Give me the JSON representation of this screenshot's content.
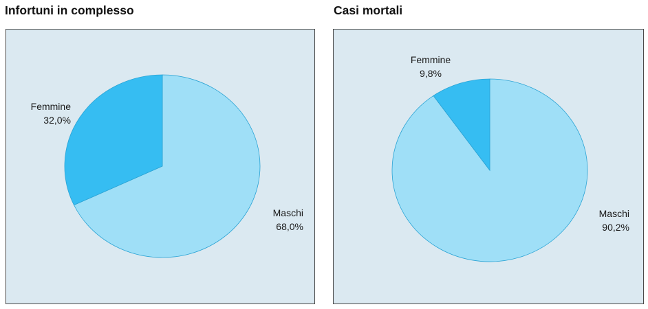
{
  "colors": {
    "panel_bg": "#dbe9f1",
    "maschi": "#9fdff7",
    "femmine": "#36bdf2",
    "edge": "#2aa3d4"
  },
  "chart_data": [
    {
      "type": "pie",
      "title": "Infortuni in complesso",
      "slices": [
        {
          "label": "Maschi",
          "value": 68.0,
          "display": "68,0%"
        },
        {
          "label": "Femmine",
          "value": 32.0,
          "display": "32,0%"
        }
      ]
    },
    {
      "type": "pie",
      "title": "Casi mortali",
      "slices": [
        {
          "label": "Maschi",
          "value": 90.2,
          "display": "90,2%"
        },
        {
          "label": "Femmine",
          "value": 9.8,
          "display": "9,8%"
        }
      ]
    }
  ]
}
